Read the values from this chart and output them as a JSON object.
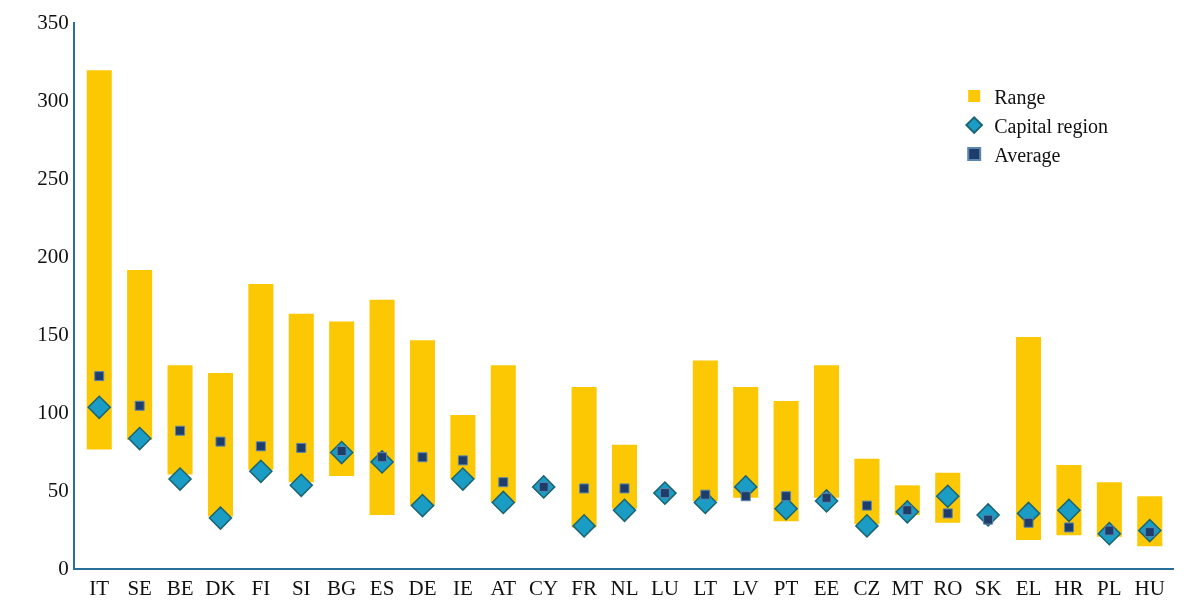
{
  "chart_data": {
    "type": "bar",
    "categories": [
      "IT",
      "SE",
      "BE",
      "DK",
      "FI",
      "SI",
      "BG",
      "ES",
      "DE",
      "IE",
      "AT",
      "CY",
      "FR",
      "NL",
      "LU",
      "LT",
      "LV",
      "PT",
      "EE",
      "CZ",
      "MT",
      "RO",
      "SK",
      "EL",
      "HR",
      "PL",
      "HU"
    ],
    "series": [
      {
        "name": "Range",
        "color": "#fcc804",
        "base": [
          76,
          82,
          60,
          33,
          63,
          55,
          59,
          34,
          40,
          57,
          42,
          null,
          26,
          38,
          null,
          43,
          45,
          30,
          45,
          28,
          34,
          29,
          null,
          18,
          21,
          20,
          14
        ],
        "values": [
          243,
          109,
          70,
          92,
          119,
          108,
          99,
          138,
          106,
          41,
          88,
          null,
          90,
          41,
          null,
          90,
          71,
          77,
          85,
          42,
          19,
          32,
          null,
          130,
          45,
          35,
          32
        ]
      },
      {
        "name": "Capital region",
        "type": "scatter",
        "marker": "diamond",
        "color": "#1a9cc4",
        "values": [
          103,
          83,
          57,
          32,
          62,
          53,
          74,
          68,
          40,
          57,
          42,
          52,
          27,
          37,
          48,
          42,
          52,
          38,
          43,
          27,
          36,
          46,
          34,
          35,
          37,
          22,
          24
        ]
      },
      {
        "name": "Average",
        "type": "scatter",
        "marker": "square",
        "color": "#1f3d6b",
        "values": [
          123,
          104,
          88,
          81,
          78,
          77,
          75,
          71,
          71,
          69,
          55,
          52,
          51,
          51,
          48,
          47,
          46,
          46,
          45,
          40,
          37,
          35,
          31,
          29,
          26,
          24,
          23
        ]
      }
    ],
    "ylim": [
      0,
      350
    ],
    "yticks": [
      0,
      50,
      100,
      150,
      200,
      250,
      300,
      350
    ],
    "legend": "top right"
  }
}
